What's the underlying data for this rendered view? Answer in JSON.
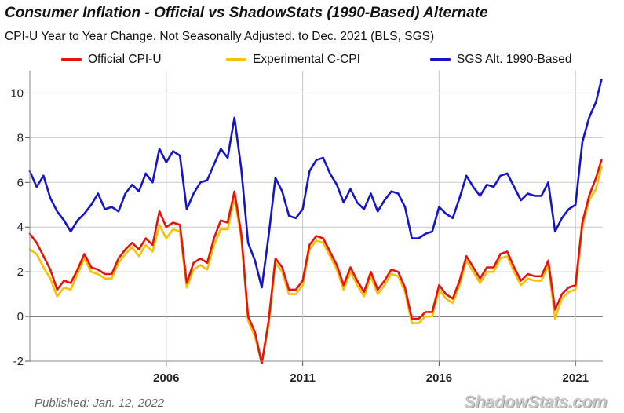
{
  "header": {
    "title": "Consumer Inflation - Official vs ShadowStats (1990-Based) Alternate",
    "subtitle": "CPI-U Year to Year Change. Not Seasonally Adjusted. to Dec. 2021  (BLS, SGS)"
  },
  "footer": {
    "published": "Published: Jan. 12, 2022",
    "brand": "ShadowStats.com"
  },
  "colors": {
    "official": "#e8120c",
    "experimental": "#f7c100",
    "sgs": "#1414c8",
    "grid": "#c8c8c8",
    "zero_line": "#333333"
  },
  "chart_data": {
    "type": "line",
    "title": "Consumer Inflation - Official vs ShadowStats (1990-Based) Alternate",
    "subtitle": "CPI-U Year to Year Change. Not Seasonally Adjusted. to Dec. 2021  (BLS, SGS)",
    "xlabel": "",
    "ylabel": "",
    "xlim": [
      2001.0,
      2022.0
    ],
    "ylim": [
      -2,
      11
    ],
    "x_ticks": [
      2006,
      2011,
      2016,
      2021
    ],
    "y_ticks": [
      -2,
      0,
      2,
      4,
      6,
      8,
      10
    ],
    "grid": true,
    "legend_position": "top",
    "series": [
      {
        "name": "Official CPI-U",
        "color": "#e8120c",
        "points": [
          [
            2001.0,
            3.7
          ],
          [
            2001.25,
            3.3
          ],
          [
            2001.5,
            2.7
          ],
          [
            2001.75,
            2.1
          ],
          [
            2002.0,
            1.2
          ],
          [
            2002.25,
            1.6
          ],
          [
            2002.5,
            1.5
          ],
          [
            2002.75,
            2.1
          ],
          [
            2003.0,
            2.8
          ],
          [
            2003.25,
            2.2
          ],
          [
            2003.5,
            2.1
          ],
          [
            2003.75,
            1.9
          ],
          [
            2004.0,
            1.9
          ],
          [
            2004.25,
            2.6
          ],
          [
            2004.5,
            3.0
          ],
          [
            2004.75,
            3.3
          ],
          [
            2005.0,
            3.0
          ],
          [
            2005.25,
            3.5
          ],
          [
            2005.5,
            3.2
          ],
          [
            2005.75,
            4.7
          ],
          [
            2006.0,
            4.0
          ],
          [
            2006.25,
            4.2
          ],
          [
            2006.5,
            4.1
          ],
          [
            2006.75,
            1.5
          ],
          [
            2007.0,
            2.4
          ],
          [
            2007.25,
            2.6
          ],
          [
            2007.5,
            2.4
          ],
          [
            2007.75,
            3.5
          ],
          [
            2008.0,
            4.3
          ],
          [
            2008.25,
            4.2
          ],
          [
            2008.5,
            5.6
          ],
          [
            2008.75,
            3.7
          ],
          [
            2009.0,
            0.0
          ],
          [
            2009.25,
            -0.7
          ],
          [
            2009.5,
            -2.1
          ],
          [
            2009.75,
            -0.2
          ],
          [
            2010.0,
            2.6
          ],
          [
            2010.25,
            2.2
          ],
          [
            2010.5,
            1.2
          ],
          [
            2010.75,
            1.2
          ],
          [
            2011.0,
            1.6
          ],
          [
            2011.25,
            3.2
          ],
          [
            2011.5,
            3.6
          ],
          [
            2011.75,
            3.5
          ],
          [
            2012.0,
            2.9
          ],
          [
            2012.25,
            2.3
          ],
          [
            2012.5,
            1.4
          ],
          [
            2012.75,
            2.2
          ],
          [
            2013.0,
            1.6
          ],
          [
            2013.25,
            1.1
          ],
          [
            2013.5,
            2.0
          ],
          [
            2013.75,
            1.2
          ],
          [
            2014.0,
            1.6
          ],
          [
            2014.25,
            2.1
          ],
          [
            2014.5,
            2.0
          ],
          [
            2014.75,
            1.3
          ],
          [
            2015.0,
            -0.1
          ],
          [
            2015.25,
            -0.1
          ],
          [
            2015.5,
            0.2
          ],
          [
            2015.75,
            0.2
          ],
          [
            2016.0,
            1.4
          ],
          [
            2016.25,
            1.0
          ],
          [
            2016.5,
            0.8
          ],
          [
            2016.75,
            1.6
          ],
          [
            2017.0,
            2.7
          ],
          [
            2017.25,
            2.2
          ],
          [
            2017.5,
            1.7
          ],
          [
            2017.75,
            2.2
          ],
          [
            2018.0,
            2.2
          ],
          [
            2018.25,
            2.8
          ],
          [
            2018.5,
            2.9
          ],
          [
            2018.75,
            2.2
          ],
          [
            2019.0,
            1.6
          ],
          [
            2019.25,
            1.9
          ],
          [
            2019.5,
            1.8
          ],
          [
            2019.75,
            1.8
          ],
          [
            2020.0,
            2.5
          ],
          [
            2020.25,
            0.3
          ],
          [
            2020.5,
            1.0
          ],
          [
            2020.75,
            1.3
          ],
          [
            2021.0,
            1.4
          ],
          [
            2021.25,
            4.2
          ],
          [
            2021.5,
            5.4
          ],
          [
            2021.75,
            6.2
          ],
          [
            2021.95,
            7.0
          ]
        ]
      },
      {
        "name": "Experimental C-CPI",
        "color": "#f7c100",
        "points": [
          [
            2001.0,
            3.0
          ],
          [
            2001.25,
            2.8
          ],
          [
            2001.5,
            2.2
          ],
          [
            2001.75,
            1.7
          ],
          [
            2002.0,
            0.9
          ],
          [
            2002.25,
            1.3
          ],
          [
            2002.5,
            1.2
          ],
          [
            2002.75,
            1.9
          ],
          [
            2003.0,
            2.6
          ],
          [
            2003.25,
            2.0
          ],
          [
            2003.5,
            1.9
          ],
          [
            2003.75,
            1.7
          ],
          [
            2004.0,
            1.7
          ],
          [
            2004.25,
            2.4
          ],
          [
            2004.5,
            2.8
          ],
          [
            2004.75,
            3.1
          ],
          [
            2005.0,
            2.7
          ],
          [
            2005.25,
            3.2
          ],
          [
            2005.5,
            2.9
          ],
          [
            2005.75,
            4.1
          ],
          [
            2006.0,
            3.5
          ],
          [
            2006.25,
            3.9
          ],
          [
            2006.5,
            3.8
          ],
          [
            2006.75,
            1.3
          ],
          [
            2007.0,
            2.1
          ],
          [
            2007.25,
            2.3
          ],
          [
            2007.5,
            2.1
          ],
          [
            2007.75,
            3.2
          ],
          [
            2008.0,
            3.9
          ],
          [
            2008.25,
            3.9
          ],
          [
            2008.5,
            5.3
          ],
          [
            2008.75,
            3.5
          ],
          [
            2009.0,
            -0.2
          ],
          [
            2009.25,
            -0.9
          ],
          [
            2009.5,
            -2.1
          ],
          [
            2009.75,
            -0.4
          ],
          [
            2010.0,
            2.4
          ],
          [
            2010.25,
            2.0
          ],
          [
            2010.5,
            1.0
          ],
          [
            2010.75,
            1.0
          ],
          [
            2011.0,
            1.4
          ],
          [
            2011.25,
            3.0
          ],
          [
            2011.5,
            3.4
          ],
          [
            2011.75,
            3.3
          ],
          [
            2012.0,
            2.7
          ],
          [
            2012.25,
            2.1
          ],
          [
            2012.5,
            1.2
          ],
          [
            2012.75,
            2.0
          ],
          [
            2013.0,
            1.4
          ],
          [
            2013.25,
            0.9
          ],
          [
            2013.5,
            1.8
          ],
          [
            2013.75,
            1.0
          ],
          [
            2014.0,
            1.4
          ],
          [
            2014.25,
            1.9
          ],
          [
            2014.5,
            1.8
          ],
          [
            2014.75,
            1.1
          ],
          [
            2015.0,
            -0.3
          ],
          [
            2015.25,
            -0.3
          ],
          [
            2015.5,
            0.0
          ],
          [
            2015.75,
            0.0
          ],
          [
            2016.0,
            1.2
          ],
          [
            2016.25,
            0.8
          ],
          [
            2016.5,
            0.6
          ],
          [
            2016.75,
            1.4
          ],
          [
            2017.0,
            2.5
          ],
          [
            2017.25,
            2.0
          ],
          [
            2017.5,
            1.5
          ],
          [
            2017.75,
            2.0
          ],
          [
            2018.0,
            2.0
          ],
          [
            2018.25,
            2.6
          ],
          [
            2018.5,
            2.7
          ],
          [
            2018.75,
            2.0
          ],
          [
            2019.0,
            1.4
          ],
          [
            2019.25,
            1.7
          ],
          [
            2019.5,
            1.6
          ],
          [
            2019.75,
            1.6
          ],
          [
            2020.0,
            2.3
          ],
          [
            2020.25,
            -0.1
          ],
          [
            2020.5,
            0.8
          ],
          [
            2020.75,
            1.1
          ],
          [
            2021.0,
            1.2
          ],
          [
            2021.25,
            4.0
          ],
          [
            2021.5,
            5.2
          ],
          [
            2021.75,
            5.7
          ],
          [
            2021.95,
            6.7
          ]
        ]
      },
      {
        "name": "SGS  Alt. 1990-Based",
        "color": "#1414c8",
        "points": [
          [
            2001.0,
            6.5
          ],
          [
            2001.25,
            5.8
          ],
          [
            2001.5,
            6.3
          ],
          [
            2001.75,
            5.3
          ],
          [
            2002.0,
            4.7
          ],
          [
            2002.25,
            4.3
          ],
          [
            2002.5,
            3.8
          ],
          [
            2002.75,
            4.3
          ],
          [
            2003.0,
            4.6
          ],
          [
            2003.25,
            5.0
          ],
          [
            2003.5,
            5.5
          ],
          [
            2003.75,
            4.8
          ],
          [
            2004.0,
            4.9
          ],
          [
            2004.25,
            4.7
          ],
          [
            2004.5,
            5.5
          ],
          [
            2004.75,
            5.9
          ],
          [
            2005.0,
            5.6
          ],
          [
            2005.25,
            6.4
          ],
          [
            2005.5,
            6.0
          ],
          [
            2005.75,
            7.5
          ],
          [
            2006.0,
            6.9
          ],
          [
            2006.25,
            7.4
          ],
          [
            2006.5,
            7.2
          ],
          [
            2006.75,
            4.8
          ],
          [
            2007.0,
            5.5
          ],
          [
            2007.25,
            6.0
          ],
          [
            2007.5,
            6.1
          ],
          [
            2007.75,
            6.8
          ],
          [
            2008.0,
            7.5
          ],
          [
            2008.25,
            7.1
          ],
          [
            2008.5,
            8.9
          ],
          [
            2008.75,
            6.6
          ],
          [
            2009.0,
            3.3
          ],
          [
            2009.25,
            2.5
          ],
          [
            2009.5,
            1.3
          ],
          [
            2009.75,
            3.6
          ],
          [
            2010.0,
            6.2
          ],
          [
            2010.25,
            5.6
          ],
          [
            2010.5,
            4.5
          ],
          [
            2010.75,
            4.4
          ],
          [
            2011.0,
            4.8
          ],
          [
            2011.25,
            6.5
          ],
          [
            2011.5,
            7.0
          ],
          [
            2011.75,
            7.1
          ],
          [
            2012.0,
            6.4
          ],
          [
            2012.25,
            5.9
          ],
          [
            2012.5,
            5.1
          ],
          [
            2012.75,
            5.7
          ],
          [
            2013.0,
            5.1
          ],
          [
            2013.25,
            4.8
          ],
          [
            2013.5,
            5.5
          ],
          [
            2013.75,
            4.7
          ],
          [
            2014.0,
            5.2
          ],
          [
            2014.25,
            5.6
          ],
          [
            2014.5,
            5.5
          ],
          [
            2014.75,
            4.9
          ],
          [
            2015.0,
            3.5
          ],
          [
            2015.25,
            3.5
          ],
          [
            2015.5,
            3.7
          ],
          [
            2015.75,
            3.8
          ],
          [
            2016.0,
            4.9
          ],
          [
            2016.25,
            4.6
          ],
          [
            2016.5,
            4.4
          ],
          [
            2016.75,
            5.3
          ],
          [
            2017.0,
            6.3
          ],
          [
            2017.25,
            5.8
          ],
          [
            2017.5,
            5.4
          ],
          [
            2017.75,
            5.9
          ],
          [
            2018.0,
            5.8
          ],
          [
            2018.25,
            6.3
          ],
          [
            2018.5,
            6.4
          ],
          [
            2018.75,
            5.8
          ],
          [
            2019.0,
            5.2
          ],
          [
            2019.25,
            5.5
          ],
          [
            2019.5,
            5.4
          ],
          [
            2019.75,
            5.4
          ],
          [
            2020.0,
            6.0
          ],
          [
            2020.25,
            3.8
          ],
          [
            2020.5,
            4.4
          ],
          [
            2020.75,
            4.8
          ],
          [
            2021.0,
            5.0
          ],
          [
            2021.25,
            7.8
          ],
          [
            2021.5,
            8.9
          ],
          [
            2021.75,
            9.6
          ],
          [
            2021.95,
            10.6
          ]
        ]
      }
    ]
  }
}
